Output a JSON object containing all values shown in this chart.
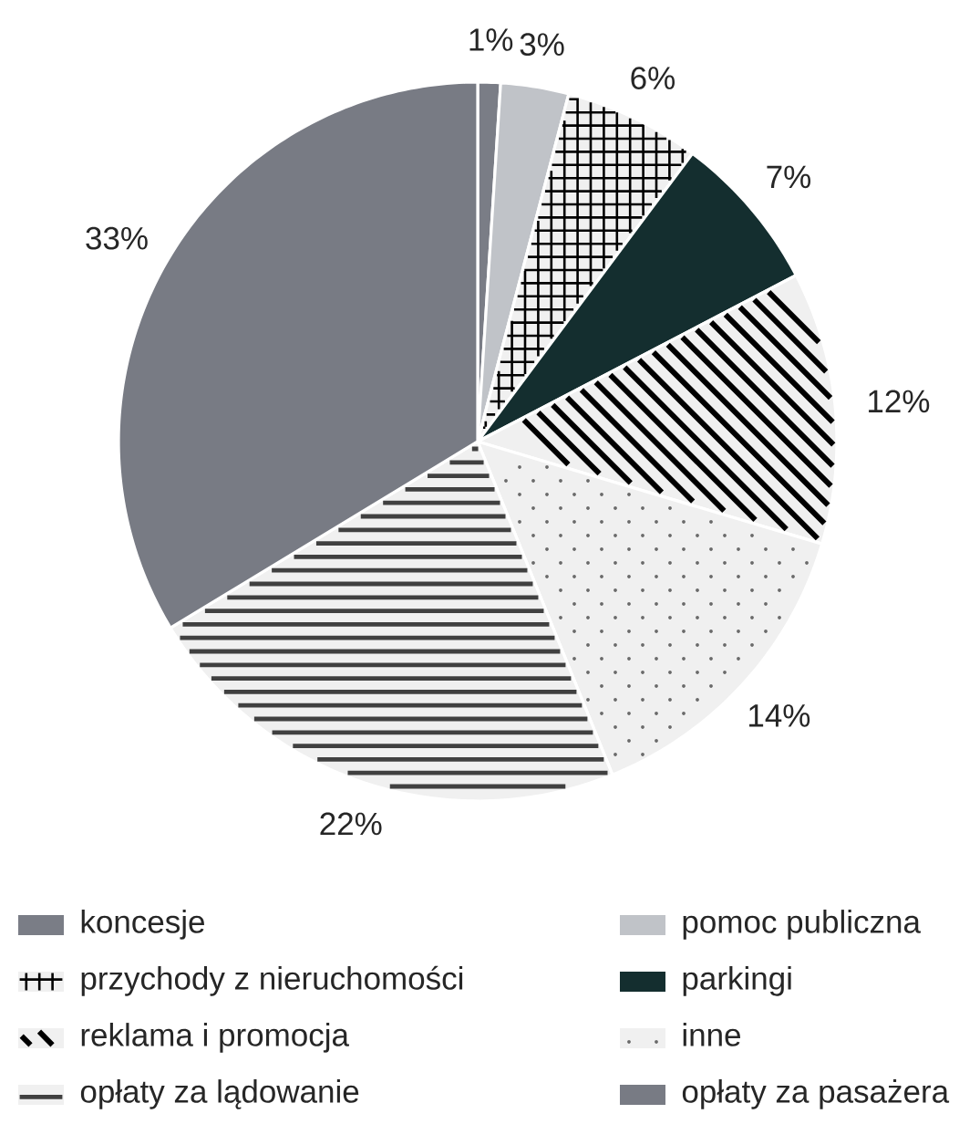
{
  "chart_data": {
    "type": "pie",
    "categories": [
      "koncesje",
      "pomoc publiczna",
      "przychody z nieruchomości",
      "parkingi",
      "reklama i promocja",
      "inne",
      "opłaty za lądowanie",
      "opłaty za pasażera"
    ],
    "values": [
      1,
      3,
      6,
      7,
      12,
      14,
      22,
      33
    ],
    "value_labels": [
      "1%",
      "3%",
      "6%",
      "7%",
      "12%",
      "14%",
      "22%",
      "33%"
    ],
    "colors": [
      "#7a7d86",
      "#c0c3c8",
      "#f0f0f0",
      "#142e2f",
      "#f0f0f0",
      "#f0f0f0",
      "#f0f0f0",
      "#787b84"
    ],
    "legend": "bottom"
  }
}
